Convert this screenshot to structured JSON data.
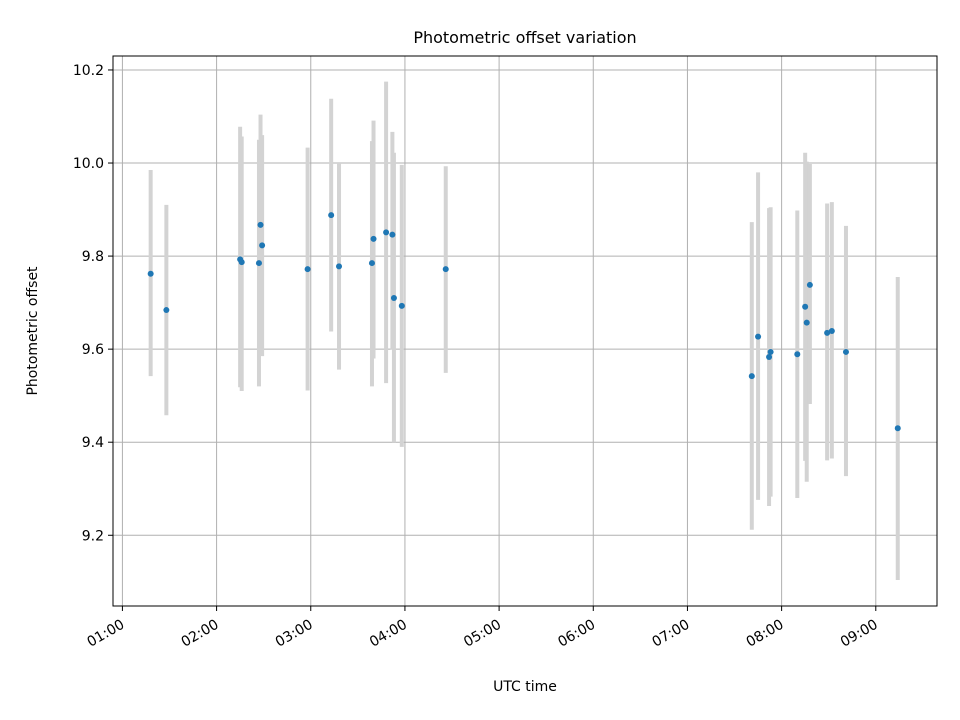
{
  "chart_data": {
    "type": "scatter",
    "title": "Photometric offset variation",
    "xlabel": "UTC time",
    "ylabel": "Photometric offset",
    "xlim": [
      "00:54",
      "09:39"
    ],
    "ylim": [
      9.048,
      10.23
    ],
    "x_ticks": [
      "01:00",
      "02:00",
      "03:00",
      "04:00",
      "05:00",
      "06:00",
      "07:00",
      "08:00",
      "09:00"
    ],
    "y_ticks": [
      9.2,
      9.4,
      9.6,
      9.8,
      10.0,
      10.2
    ],
    "grid": true,
    "colors": {
      "point": "#1f77b4",
      "errorbar": "#d3d3d3",
      "grid": "#b0b0b0"
    },
    "points": [
      {
        "x": "01:18",
        "y": 9.762,
        "low": 9.542,
        "high": 9.985
      },
      {
        "x": "01:28",
        "y": 9.684,
        "low": 9.458,
        "high": 9.91
      },
      {
        "x": "02:15",
        "y": 9.793,
        "low": 9.518,
        "high": 10.078
      },
      {
        "x": "02:16",
        "y": 9.787,
        "low": 9.51,
        "high": 10.057
      },
      {
        "x": "02:27",
        "y": 9.785,
        "low": 9.52,
        "high": 10.05
      },
      {
        "x": "02:28",
        "y": 9.867,
        "low": 9.59,
        "high": 10.104
      },
      {
        "x": "02:29",
        "y": 9.823,
        "low": 9.585,
        "high": 10.06
      },
      {
        "x": "02:58",
        "y": 9.772,
        "low": 9.511,
        "high": 10.033
      },
      {
        "x": "03:13",
        "y": 9.888,
        "low": 9.638,
        "high": 10.138
      },
      {
        "x": "03:18",
        "y": 9.778,
        "low": 9.556,
        "high": 10.002
      },
      {
        "x": "03:39",
        "y": 9.785,
        "low": 9.52,
        "high": 10.047
      },
      {
        "x": "03:40",
        "y": 9.837,
        "low": 9.58,
        "high": 10.091
      },
      {
        "x": "03:48",
        "y": 9.851,
        "low": 9.527,
        "high": 10.175
      },
      {
        "x": "03:52",
        "y": 9.846,
        "low": 9.599,
        "high": 10.067
      },
      {
        "x": "03:53",
        "y": 9.71,
        "low": 9.4,
        "high": 10.022
      },
      {
        "x": "03:58",
        "y": 9.693,
        "low": 9.39,
        "high": 9.996
      },
      {
        "x": "04:26",
        "y": 9.772,
        "low": 9.549,
        "high": 9.993
      },
      {
        "x": "07:41",
        "y": 9.542,
        "low": 9.212,
        "high": 9.873
      },
      {
        "x": "07:45",
        "y": 9.627,
        "low": 9.276,
        "high": 9.98
      },
      {
        "x": "07:52",
        "y": 9.583,
        "low": 9.263,
        "high": 9.903
      },
      {
        "x": "07:53",
        "y": 9.594,
        "low": 9.283,
        "high": 9.905
      },
      {
        "x": "08:10",
        "y": 9.589,
        "low": 9.28,
        "high": 9.898
      },
      {
        "x": "08:15",
        "y": 9.691,
        "low": 9.36,
        "high": 10.022
      },
      {
        "x": "08:16",
        "y": 9.657,
        "low": 9.315,
        "high": 10.003
      },
      {
        "x": "08:18",
        "y": 9.738,
        "low": 9.482,
        "high": 9.998
      },
      {
        "x": "08:29",
        "y": 9.635,
        "low": 9.361,
        "high": 9.913
      },
      {
        "x": "08:32",
        "y": 9.639,
        "low": 9.365,
        "high": 9.916
      },
      {
        "x": "08:41",
        "y": 9.594,
        "low": 9.327,
        "high": 9.865
      },
      {
        "x": "09:14",
        "y": 9.43,
        "low": 9.104,
        "high": 9.755
      }
    ]
  }
}
